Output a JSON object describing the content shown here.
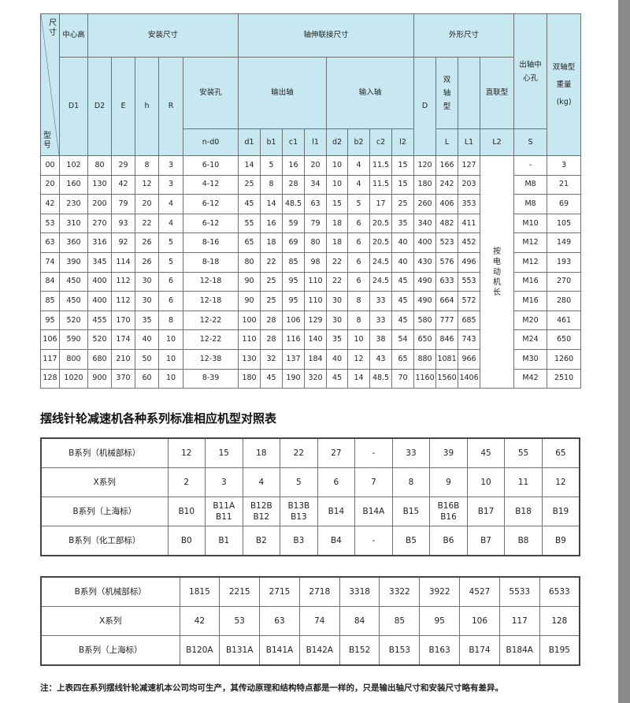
{
  "main_table": {
    "corner_top": "尺寸",
    "corner_bottom": "型号",
    "group_headers": {
      "center_height": "中心高",
      "mounting": "安装尺寸",
      "shaft_connection": "轴伸联接尺寸",
      "overall": "外形尺寸",
      "output_center_hole": "出轴中心孔",
      "weight": "双轴型重量(kg)"
    },
    "sub_headers": {
      "D1": "D1",
      "D2": "D2",
      "E": "E",
      "h": "h",
      "R": "R",
      "mounting_hole": "安装孔",
      "output_shaft": "输出轴",
      "input_shaft": "输入轴",
      "D": "D",
      "double_shaft": "双轴型",
      "direct_coupled": "直联型"
    },
    "unit_headers": [
      "n-d0",
      "d1",
      "b1",
      "c1",
      "l1",
      "d2",
      "b2",
      "c2",
      "l2",
      "L",
      "L1",
      "L2",
      "S"
    ],
    "l2_note": "按电动机长",
    "rows": [
      [
        "00",
        "102",
        "80",
        "29",
        "8",
        "3",
        "6-10",
        "14",
        "5",
        "16",
        "20",
        "10",
        "4",
        "11.5",
        "15",
        "120",
        "166",
        "127",
        "-",
        "3"
      ],
      [
        "20",
        "160",
        "130",
        "42",
        "12",
        "3",
        "4-12",
        "25",
        "8",
        "28",
        "34",
        "10",
        "4",
        "11.5",
        "15",
        "180",
        "242",
        "203",
        "M8",
        "21"
      ],
      [
        "42",
        "230",
        "200",
        "79",
        "20",
        "4",
        "6-12",
        "45",
        "14",
        "48.5",
        "63",
        "15",
        "5",
        "17",
        "25",
        "260",
        "406",
        "353",
        "M8",
        "69"
      ],
      [
        "53",
        "310",
        "270",
        "93",
        "22",
        "4",
        "6-12",
        "55",
        "16",
        "59",
        "79",
        "18",
        "6",
        "20.5",
        "35",
        "340",
        "482",
        "411",
        "M10",
        "105"
      ],
      [
        "63",
        "360",
        "316",
        "92",
        "26",
        "5",
        "8-16",
        "65",
        "18",
        "69",
        "80",
        "18",
        "6",
        "20.5",
        "40",
        "400",
        "523",
        "452",
        "M12",
        "149"
      ],
      [
        "74",
        "390",
        "345",
        "114",
        "26",
        "5",
        "8-18",
        "80",
        "22",
        "85",
        "98",
        "22",
        "6",
        "24.5",
        "40",
        "430",
        "576",
        "496",
        "M12",
        "193"
      ],
      [
        "84",
        "450",
        "400",
        "112",
        "30",
        "6",
        "12-18",
        "90",
        "25",
        "95",
        "110",
        "22",
        "6",
        "24.5",
        "45",
        "490",
        "633",
        "553",
        "M16",
        "270"
      ],
      [
        "85",
        "450",
        "400",
        "112",
        "30",
        "6",
        "12-18",
        "90",
        "25",
        "95",
        "110",
        "30",
        "8",
        "33",
        "45",
        "490",
        "664",
        "572",
        "M16",
        "280"
      ],
      [
        "95",
        "520",
        "455",
        "170",
        "35",
        "8",
        "12-22",
        "100",
        "28",
        "106",
        "129",
        "30",
        "8",
        "33",
        "45",
        "580",
        "777",
        "685",
        "M20",
        "461"
      ],
      [
        "106",
        "590",
        "520",
        "174",
        "40",
        "10",
        "12-22",
        "110",
        "28",
        "116",
        "140",
        "35",
        "10",
        "38",
        "54",
        "650",
        "846",
        "743",
        "M24",
        "650"
      ],
      [
        "117",
        "800",
        "680",
        "210",
        "50",
        "10",
        "12-38",
        "130",
        "32",
        "137",
        "184",
        "40",
        "12",
        "43",
        "65",
        "880",
        "1081",
        "966",
        "M30",
        "1260"
      ],
      [
        "128",
        "1020",
        "900",
        "370",
        "60",
        "10",
        "8-39",
        "180",
        "45",
        "190",
        "320",
        "45",
        "14",
        "48.5",
        "70",
        "1160",
        "1560",
        "1406",
        "M42",
        "2510"
      ]
    ]
  },
  "comparison_title": "摆线针轮减速机各种系列标准相应机型对照表",
  "comparison_table_1": {
    "rows": [
      {
        "label": "B系列（机械部标）",
        "values": [
          "12",
          "15",
          "18",
          "22",
          "27",
          "-",
          "33",
          "39",
          "45",
          "55",
          "65"
        ]
      },
      {
        "label": "X系列",
        "values": [
          "2",
          "3",
          "4",
          "5",
          "6",
          "7",
          "8",
          "9",
          "10",
          "11",
          "12"
        ]
      },
      {
        "label": "B系列（上海标）",
        "values": [
          "B10",
          "B11A\nB11",
          "B12B\nB12",
          "B13B\nB13",
          "B14",
          "B14A",
          "B15",
          "B16B\nB16",
          "B17",
          "B18",
          "B19"
        ]
      },
      {
        "label": "B系列（化工部标）",
        "values": [
          "B0",
          "B1",
          "B2",
          "B3",
          "B4",
          "-",
          "B5",
          "B6",
          "B7",
          "B8",
          "B9"
        ]
      }
    ]
  },
  "comparison_table_2": {
    "rows": [
      {
        "label": "B系列（机械部标）",
        "values": [
          "1815",
          "2215",
          "2715",
          "2718",
          "3318",
          "3322",
          "3922",
          "4527",
          "5533",
          "6533"
        ]
      },
      {
        "label": "X系列",
        "values": [
          "42",
          "53",
          "63",
          "74",
          "84",
          "85",
          "95",
          "106",
          "117",
          "128"
        ]
      },
      {
        "label": "B系列（上海标）",
        "values": [
          "B120A",
          "B131A",
          "B141A",
          "B142A",
          "B152",
          "B153",
          "B163",
          "B174",
          "B184A",
          "B195"
        ]
      }
    ]
  },
  "note": "注：上表四在系列摆线针轮减速机本公司均可生产，其传动原理和结构特点都是一样的，只是输出轴尺寸和安装尺寸略有差异。",
  "colors": {
    "header_bg": "#c8e8f1",
    "border": "#6f6f6f",
    "side_strip": "#8a8a8a"
  }
}
